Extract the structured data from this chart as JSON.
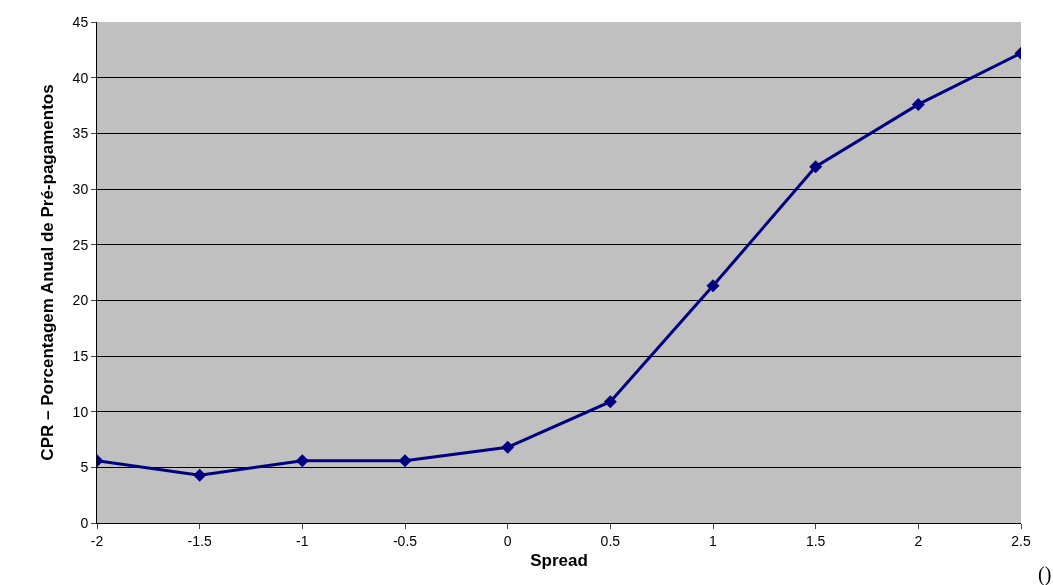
{
  "chart_data": {
    "type": "line",
    "xlabel": "Spread",
    "ylabel": "CPR – Porcentagem Anual de Pré-pagamentos",
    "x": [
      -2,
      -1.5,
      -1,
      -0.5,
      0,
      0.5,
      1,
      1.5,
      2,
      2.5
    ],
    "series": [
      {
        "color": "#000080",
        "values": [
          5.6,
          4.3,
          5.6,
          5.6,
          6.8,
          10.9,
          21.3,
          32,
          37.6,
          42.2
        ]
      }
    ],
    "xlim": [
      -2,
      2.5
    ],
    "xticks": [
      -2,
      -1.5,
      -1,
      -0.5,
      0,
      0.5,
      1,
      1.5,
      2,
      2.5
    ],
    "ylim": [
      0,
      45
    ],
    "yticks": [
      0,
      5,
      10,
      15,
      20,
      25,
      30,
      35,
      40,
      45
    ],
    "grid": "y",
    "marker": "diamond",
    "line_style": "solid",
    "annotations": [
      "()"
    ]
  }
}
